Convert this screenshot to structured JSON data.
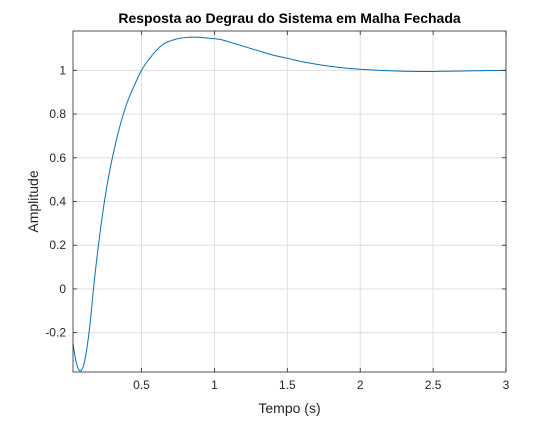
{
  "chart_data": {
    "type": "line",
    "title": "Resposta ao Degrau do Sistema em Malha Fechada",
    "xlabel": "Tempo (s)",
    "ylabel": "Amplitude",
    "xlim": [
      0.03,
      3.0
    ],
    "ylim": [
      -0.38,
      1.18
    ],
    "xticks": [
      0.5,
      1,
      1.5,
      2,
      2.5,
      3
    ],
    "xtick_labels": [
      "0.5",
      "1",
      "1.5",
      "2",
      "2.5",
      "3"
    ],
    "yticks": [
      -0.2,
      0,
      0.2,
      0.4,
      0.6,
      0.8,
      1
    ],
    "ytick_labels": [
      "-0.2",
      "0",
      "0.2",
      "0.4",
      "0.6",
      "0.8",
      "1"
    ],
    "grid": true,
    "series": [
      {
        "color": "#0072BD",
        "x": [
          0.03,
          0.05,
          0.07,
          0.09,
          0.11,
          0.13,
          0.15,
          0.18,
          0.22,
          0.26,
          0.3,
          0.35,
          0.4,
          0.45,
          0.5,
          0.55,
          0.6,
          0.65,
          0.7,
          0.75,
          0.8,
          0.85,
          0.9,
          0.95,
          1.0,
          1.05,
          1.1,
          1.2,
          1.3,
          1.4,
          1.5,
          1.6,
          1.7,
          1.8,
          1.9,
          2.0,
          2.1,
          2.2,
          2.3,
          2.4,
          2.5,
          2.6,
          2.7,
          2.8,
          2.9,
          3.0
        ],
        "y": [
          -0.25,
          -0.33,
          -0.37,
          -0.37,
          -0.33,
          -0.25,
          -0.14,
          0.06,
          0.28,
          0.46,
          0.6,
          0.74,
          0.85,
          0.93,
          1.0,
          1.05,
          1.09,
          1.12,
          1.135,
          1.145,
          1.15,
          1.152,
          1.151,
          1.148,
          1.145,
          1.14,
          1.13,
          1.11,
          1.09,
          1.07,
          1.055,
          1.04,
          1.028,
          1.018,
          1.01,
          1.005,
          1.001,
          0.998,
          0.996,
          0.995,
          0.995,
          0.996,
          0.997,
          0.998,
          0.999,
          1.0
        ]
      }
    ]
  }
}
